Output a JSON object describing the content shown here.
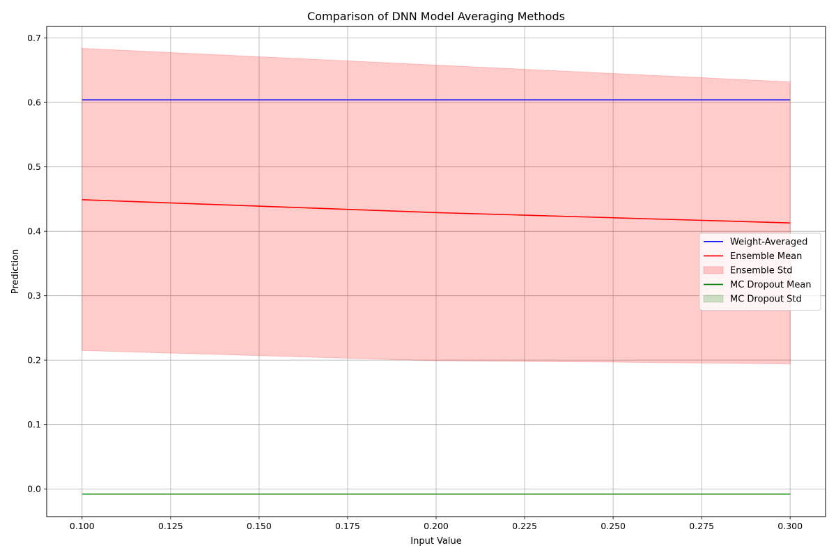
{
  "chart_data": {
    "type": "line",
    "title": "Comparison of DNN Model Averaging Methods",
    "xlabel": "Input Value",
    "ylabel": "Prediction",
    "xlim": [
      0.09,
      0.31
    ],
    "ylim": [
      -0.043,
      0.718
    ],
    "xticks": [
      0.1,
      0.125,
      0.15,
      0.175,
      0.2,
      0.225,
      0.25,
      0.275,
      0.3
    ],
    "xtick_labels": [
      "0.100",
      "0.125",
      "0.150",
      "0.175",
      "0.200",
      "0.225",
      "0.250",
      "0.275",
      "0.300"
    ],
    "yticks": [
      0.0,
      0.1,
      0.2,
      0.3,
      0.4,
      0.5,
      0.6,
      0.7
    ],
    "ytick_labels": [
      "0.0",
      "0.1",
      "0.2",
      "0.3",
      "0.4",
      "0.5",
      "0.6",
      "0.7"
    ],
    "grid": true,
    "legend_position": "center-right",
    "x": [
      0.1,
      0.15,
      0.2,
      0.25,
      0.3
    ],
    "series": [
      {
        "name": "Weight-Averaged",
        "kind": "line",
        "color": "#0000ff",
        "values": [
          0.604,
          0.604,
          0.604,
          0.604,
          0.604
        ]
      },
      {
        "name": "Ensemble Mean",
        "kind": "line",
        "color": "#ff0000",
        "values": [
          0.449,
          0.439,
          0.429,
          0.421,
          0.413
        ]
      },
      {
        "name": "Ensemble Std",
        "kind": "band",
        "color": "#ff0000",
        "opacity": 0.2,
        "lower": [
          0.215,
          0.207,
          0.199,
          0.197,
          0.194
        ],
        "upper": [
          0.684,
          0.671,
          0.658,
          0.645,
          0.632
        ]
      },
      {
        "name": "MC Dropout Mean",
        "kind": "line",
        "color": "#008000",
        "values": [
          -0.008,
          -0.008,
          -0.008,
          -0.008,
          -0.008
        ]
      },
      {
        "name": "MC Dropout Std",
        "kind": "band",
        "color": "#008000",
        "opacity": 0.2,
        "lower": [
          -0.008,
          -0.008,
          -0.008,
          -0.008,
          -0.008
        ],
        "upper": [
          -0.008,
          -0.008,
          -0.008,
          -0.008,
          -0.008
        ]
      }
    ]
  }
}
